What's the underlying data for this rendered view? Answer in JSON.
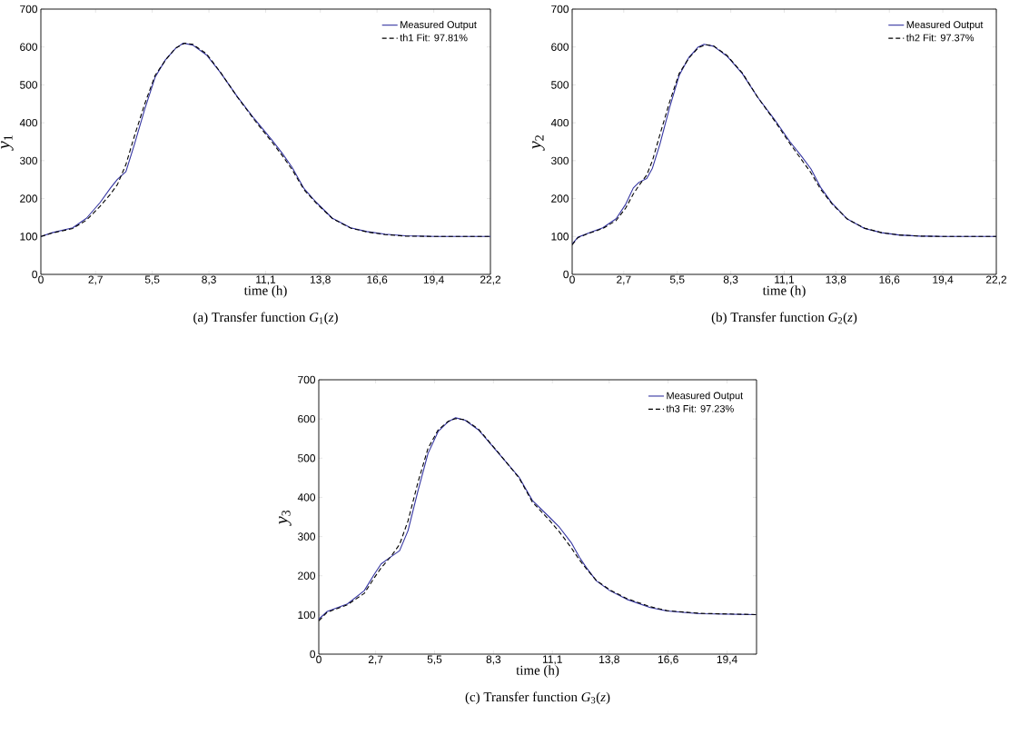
{
  "chart_data": [
    {
      "type": "line",
      "xlabel": "time (h)",
      "ylabel": "*y*$_{1}$",
      "legend": "top right",
      "xlim": [
        0,
        22.2
      ],
      "ylim": [
        0,
        700
      ],
      "xticks": [
        0,
        {
          "value": 2.7,
          "label": "2,7"
        },
        {
          "value": 5.5,
          "label": "5,5"
        },
        {
          "value": 8.3,
          "label": "8,3"
        },
        {
          "value": 11.1,
          "label": "11,1"
        },
        {
          "value": 13.8,
          "label": "13,8"
        },
        {
          "value": 16.6,
          "label": "16,6"
        },
        {
          "value": 19.4,
          "label": "19,4"
        },
        {
          "value": 22.2,
          "label": "22,2"
        }
      ],
      "yticks": [
        0,
        100,
        200,
        300,
        400,
        500,
        600,
        700
      ],
      "annotations": [
        "(a)  Transfer function *G*$_{1}$(*z*)"
      ],
      "series": [
        {
          "name": "Measured Output",
          "color": "#3333a0",
          "line_style": "solid",
          "x": [
            0,
            0.56,
            1.57,
            2.25,
            2.93,
            3.44,
            3.78,
            4.2,
            4.62,
            5.13,
            5.64,
            6.15,
            6.65,
            7.03,
            7.5,
            8.18,
            8.86,
            9.7,
            10.55,
            11.4,
            11.9,
            12.4,
            13.0,
            13.6,
            14.4,
            15.3,
            16.1,
            17.0,
            18.0,
            19.5,
            22.2
          ],
          "values": [
            100,
            110,
            123,
            148,
            190,
            228,
            251,
            271,
            343,
            436,
            520,
            566,
            596,
            610,
            605,
            579,
            533,
            469,
            410,
            355,
            321,
            283,
            226,
            190,
            148,
            123,
            113,
            106,
            102,
            100,
            100
          ]
        },
        {
          "name": "th1 Fit: 97.81%",
          "color": "#000000",
          "line_style": "dashed",
          "x": [
            0,
            0.56,
            1.57,
            2.25,
            2.93,
            3.44,
            3.78,
            4.2,
            4.62,
            5.13,
            5.64,
            6.15,
            6.65,
            7.1,
            7.5,
            8.18,
            8.86,
            9.7,
            10.55,
            11.4,
            11.9,
            12.4,
            13.0,
            13.6,
            14.4,
            15.3,
            16.1,
            17.0,
            18.0,
            19.5,
            22.2
          ],
          "values": [
            100,
            109,
            121,
            143,
            180,
            212,
            237,
            290,
            365,
            450,
            525,
            565,
            597,
            610,
            607,
            582,
            534,
            468,
            407,
            350,
            315,
            277,
            223,
            188,
            147,
            122,
            112,
            105,
            101,
            100,
            100
          ]
        }
      ]
    },
    {
      "type": "line",
      "xlabel": "time (h)",
      "ylabel": "*y*$_{2}$",
      "legend": "top right",
      "xlim": [
        0,
        22.2
      ],
      "ylim": [
        0,
        700
      ],
      "xticks": [
        0,
        {
          "value": 2.7,
          "label": "2,7"
        },
        {
          "value": 5.5,
          "label": "5,5"
        },
        {
          "value": 8.3,
          "label": "8,3"
        },
        {
          "value": 11.1,
          "label": "11,1"
        },
        {
          "value": 13.8,
          "label": "13,8"
        },
        {
          "value": 16.6,
          "label": "16,6"
        },
        {
          "value": 19.4,
          "label": "19,4"
        },
        {
          "value": 22.2,
          "label": "22,2"
        }
      ],
      "yticks": [
        0,
        100,
        200,
        300,
        400,
        500,
        600,
        700
      ],
      "annotations": [
        "(b)  Transfer function *G*$_{2}$(*z*)"
      ],
      "series": [
        {
          "name": "Measured Output",
          "color": "#3333a0",
          "line_style": "solid",
          "x": [
            0,
            0.3,
            0.8,
            1.6,
            2.3,
            2.8,
            3.2,
            3.5,
            3.9,
            4.2,
            4.6,
            5.1,
            5.6,
            6.1,
            6.6,
            6.9,
            7.4,
            8.1,
            8.9,
            9.7,
            10.6,
            11.4,
            12.0,
            12.5,
            13.0,
            13.6,
            14.4,
            15.3,
            16.2,
            17.1,
            18.2,
            19.5,
            22.2
          ],
          "values": [
            80,
            98,
            108,
            123,
            147,
            185,
            228,
            243,
            253,
            280,
            345,
            440,
            525,
            572,
            600,
            607,
            602,
            576,
            530,
            468,
            408,
            350,
            312,
            278,
            230,
            188,
            146,
            121,
            110,
            104,
            101,
            100,
            100
          ]
        },
        {
          "name": "th2 Fit: 97.37%",
          "color": "#000000",
          "line_style": "dashed",
          "x": [
            0,
            0.3,
            0.8,
            1.6,
            2.3,
            2.8,
            3.2,
            3.5,
            3.9,
            4.2,
            4.6,
            5.1,
            5.6,
            6.1,
            6.6,
            7.0,
            7.4,
            8.1,
            8.9,
            9.7,
            10.6,
            11.4,
            12.0,
            12.5,
            13.0,
            13.6,
            14.4,
            15.3,
            16.2,
            17.1,
            18.2,
            19.5,
            22.2
          ],
          "values": [
            78,
            97,
            107,
            121,
            142,
            175,
            212,
            235,
            262,
            300,
            370,
            455,
            530,
            570,
            598,
            606,
            603,
            578,
            532,
            468,
            405,
            345,
            303,
            268,
            225,
            186,
            146,
            122,
            110,
            104,
            101,
            100,
            100
          ]
        }
      ]
    },
    {
      "type": "line",
      "xlabel": "time (h)",
      "ylabel": "*y*$_{3}$",
      "legend": "top right",
      "xlim": [
        0,
        20.8
      ],
      "ylim": [
        0,
        700
      ],
      "xticks": [
        0,
        {
          "value": 2.7,
          "label": "2,7"
        },
        {
          "value": 5.5,
          "label": "5,5"
        },
        {
          "value": 8.3,
          "label": "8,3"
        },
        {
          "value": 11.1,
          "label": "11,1"
        },
        {
          "value": 13.8,
          "label": "13,8"
        },
        {
          "value": 16.6,
          "label": "16,6"
        },
        {
          "value": 19.4,
          "label": "19,4"
        }
      ],
      "yticks": [
        0,
        100,
        200,
        300,
        400,
        500,
        600,
        700
      ],
      "annotations": [
        "(c)  Transfer function *G*$_{3}$(*z*)"
      ],
      "series": [
        {
          "name": "Measured Output",
          "color": "#3333a0",
          "line_style": "solid",
          "x": [
            0,
            0.4,
            1.36,
            2.16,
            2.64,
            2.96,
            3.44,
            3.84,
            4.24,
            4.72,
            5.19,
            5.67,
            6.15,
            6.5,
            6.95,
            7.59,
            8.55,
            9.51,
            10.15,
            10.95,
            11.43,
            11.99,
            12.39,
            12.71,
            13.19,
            13.83,
            14.63,
            15.75,
            16.55,
            18.14,
            20.78
          ],
          "values": [
            89,
            109,
            128,
            162,
            204,
            230,
            249,
            264,
            315,
            418,
            512,
            568,
            593,
            603,
            597,
            572,
            512,
            452,
            392,
            350,
            324,
            285,
            247,
            221,
            187,
            162,
            140,
            119,
            110,
            103,
            101
          ]
        },
        {
          "name": "th3 Fit: 97.23%",
          "color": "#000000",
          "line_style": "dashed",
          "x": [
            0,
            0.4,
            1.36,
            2.16,
            2.64,
            2.96,
            3.44,
            3.84,
            4.24,
            4.72,
            5.19,
            5.67,
            6.15,
            6.5,
            6.95,
            7.59,
            8.55,
            9.51,
            10.15,
            10.95,
            11.43,
            11.99,
            12.39,
            12.71,
            13.19,
            13.83,
            14.63,
            15.75,
            16.55,
            18.14,
            20.78
          ],
          "values": [
            85,
            107,
            126,
            155,
            195,
            220,
            250,
            280,
            340,
            440,
            525,
            572,
            594,
            601,
            598,
            574,
            513,
            450,
            388,
            342,
            312,
            272,
            240,
            218,
            188,
            164,
            142,
            121,
            111,
            104,
            101
          ]
        }
      ]
    }
  ]
}
